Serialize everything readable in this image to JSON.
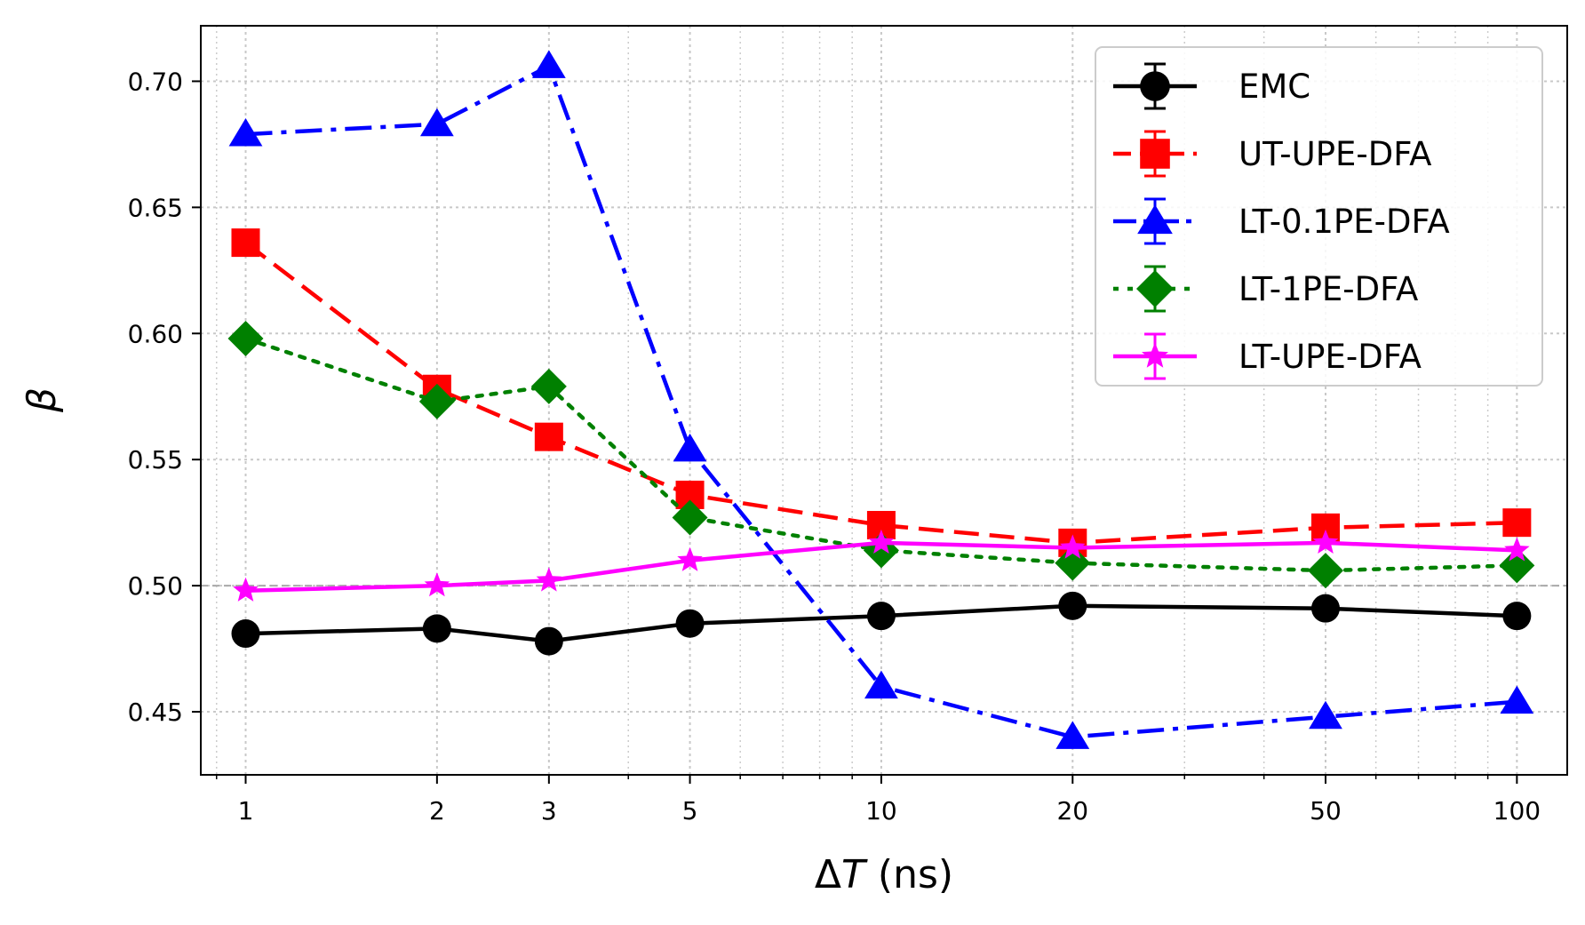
{
  "chart_data": {
    "type": "line",
    "title": "",
    "xlabel_prefix": "Δ",
    "xlabel_var": "T",
    "xlabel_suffix": " (ns)",
    "ylabel": "β",
    "xscale": "log",
    "xlim": [
      0.85,
      120
    ],
    "ylim": [
      0.425,
      0.722
    ],
    "xticks": [
      1,
      2,
      3,
      5,
      10,
      20,
      50,
      100
    ],
    "xtick_labels": [
      "1",
      "2",
      "3",
      "5",
      "10",
      "20",
      "50",
      "100"
    ],
    "yticks": [
      0.45,
      0.5,
      0.55,
      0.6,
      0.65,
      0.7
    ],
    "ytick_labels": [
      "0.45",
      "0.50",
      "0.55",
      "0.60",
      "0.65",
      "0.70"
    ],
    "grid": true,
    "reference_line": 0.5,
    "legend_position": "top-right",
    "x": [
      1,
      2,
      3,
      5,
      10,
      20,
      50,
      100
    ],
    "series": [
      {
        "name": "EMC",
        "color": "#000000",
        "marker": "circle",
        "linestyle": "solid",
        "values": [
          0.481,
          0.483,
          0.478,
          0.485,
          0.488,
          0.492,
          0.491,
          0.488
        ]
      },
      {
        "name": "UT-UPE-DFA",
        "color": "#ff0000",
        "marker": "square",
        "linestyle": "dashed",
        "values": [
          0.636,
          0.578,
          0.559,
          0.536,
          0.524,
          0.517,
          0.523,
          0.525
        ]
      },
      {
        "name": "LT-0.1PE-DFA",
        "color": "#0000ff",
        "marker": "triangle",
        "linestyle": "dashdot",
        "values": [
          0.679,
          0.683,
          0.706,
          0.554,
          0.46,
          0.44,
          0.448,
          0.454
        ]
      },
      {
        "name": "LT-1PE-DFA",
        "color": "#008000",
        "marker": "diamond",
        "linestyle": "dotted",
        "values": [
          0.598,
          0.573,
          0.579,
          0.527,
          0.514,
          0.509,
          0.506,
          0.508
        ]
      },
      {
        "name": "LT-UPE-DFA",
        "color": "#ff00ff",
        "marker": "star",
        "linestyle": "solid",
        "values": [
          0.498,
          0.5,
          0.502,
          0.51,
          0.517,
          0.515,
          0.517,
          0.514
        ]
      }
    ]
  }
}
